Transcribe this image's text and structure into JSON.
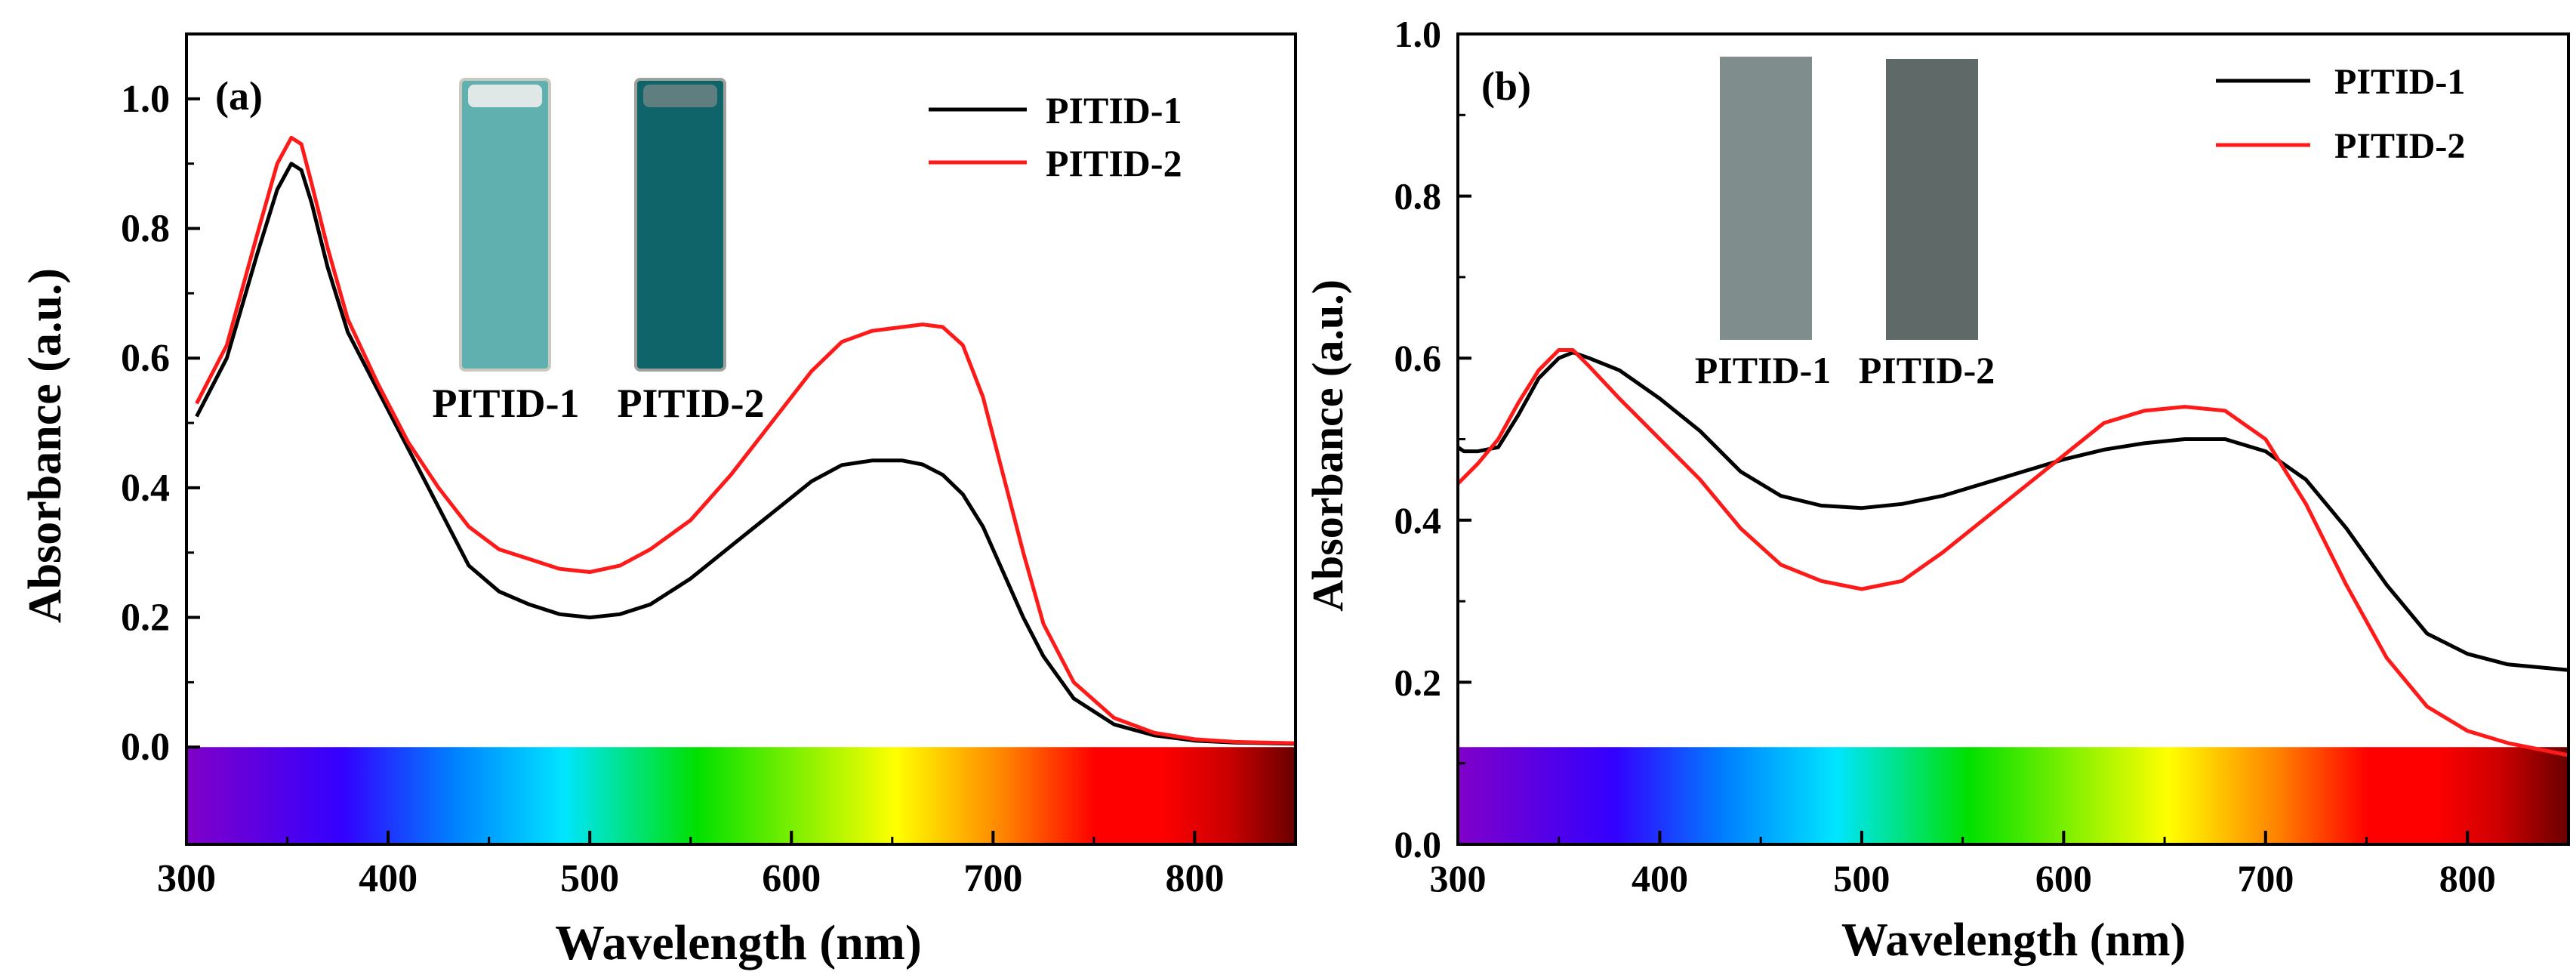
{
  "colors": {
    "series1": "#000000",
    "series2": "#ff1a1a",
    "axis": "#000000",
    "spectrum": [
      "#8000c8",
      "#3300ff",
      "#0080ff",
      "#00e5ff",
      "#00e000",
      "#ffff00",
      "#ff8000",
      "#ff0000",
      "#ff0000",
      "#cc0000",
      "#6b0000"
    ],
    "panel_a_cuvette_1": "#5fb0ae",
    "panel_a_cuvette_2": "#0f6469",
    "panel_b_film_1": "#7f8e8c",
    "panel_b_film_2": "#5f6a68"
  },
  "chart_data": [
    {
      "type": "line",
      "panel": "(a)",
      "title": "",
      "xlabel": "Wavelength (nm)",
      "ylabel": "Absorbance (a.u.)",
      "xlim": [
        300,
        850
      ],
      "ylim": [
        -0.15,
        1.1
      ],
      "xticks": [
        300,
        400,
        500,
        600,
        700,
        800
      ],
      "yticks": [
        0.0,
        0.2,
        0.4,
        0.6,
        0.8,
        1.0
      ],
      "xtick_labels": [
        "300",
        "400",
        "500",
        "600",
        "700",
        "800"
      ],
      "ytick_labels": [
        "0.0",
        "0.2",
        "0.4",
        "0.6",
        "0.8",
        "1.0"
      ],
      "legend": [
        "PITID-1",
        "PITID-2"
      ],
      "legend_position": "top-right",
      "inset_labels": [
        "PITID-1",
        "PITID-2"
      ],
      "spectrum_bar": true,
      "series": [
        {
          "name": "PITID-1",
          "x": [
            305,
            320,
            335,
            345,
            352,
            357,
            362,
            370,
            380,
            395,
            410,
            425,
            440,
            455,
            470,
            485,
            500,
            515,
            530,
            550,
            570,
            590,
            610,
            625,
            640,
            655,
            665,
            675,
            685,
            695,
            705,
            715,
            725,
            740,
            760,
            780,
            800,
            820,
            850
          ],
          "y": [
            0.51,
            0.6,
            0.76,
            0.86,
            0.9,
            0.89,
            0.84,
            0.74,
            0.64,
            0.55,
            0.46,
            0.37,
            0.28,
            0.24,
            0.22,
            0.205,
            0.2,
            0.205,
            0.22,
            0.26,
            0.31,
            0.36,
            0.41,
            0.435,
            0.442,
            0.442,
            0.436,
            0.42,
            0.39,
            0.34,
            0.27,
            0.2,
            0.14,
            0.075,
            0.035,
            0.018,
            0.01,
            0.007,
            0.005
          ]
        },
        {
          "name": "PITID-2",
          "x": [
            305,
            320,
            335,
            345,
            352,
            357,
            362,
            370,
            380,
            395,
            410,
            425,
            440,
            455,
            470,
            485,
            500,
            515,
            530,
            550,
            570,
            590,
            610,
            625,
            640,
            655,
            665,
            675,
            685,
            695,
            705,
            715,
            725,
            740,
            760,
            780,
            800,
            820,
            850
          ],
          "y": [
            0.53,
            0.62,
            0.79,
            0.9,
            0.94,
            0.93,
            0.87,
            0.77,
            0.66,
            0.56,
            0.47,
            0.4,
            0.34,
            0.305,
            0.29,
            0.275,
            0.27,
            0.28,
            0.305,
            0.35,
            0.42,
            0.5,
            0.58,
            0.625,
            0.642,
            0.648,
            0.652,
            0.648,
            0.62,
            0.54,
            0.42,
            0.3,
            0.19,
            0.1,
            0.045,
            0.022,
            0.012,
            0.008,
            0.006
          ]
        }
      ]
    },
    {
      "type": "line",
      "panel": "(b)",
      "title": "",
      "xlabel": "Wavelength (nm)",
      "ylabel": "Absorbance (a.u.)",
      "xlim": [
        300,
        850
      ],
      "ylim": [
        0.0,
        1.0
      ],
      "xticks": [
        300,
        400,
        500,
        600,
        700,
        800
      ],
      "yticks": [
        0.0,
        0.2,
        0.4,
        0.6,
        0.8,
        1.0
      ],
      "xtick_labels": [
        "300",
        "400",
        "500",
        "600",
        "700",
        "800"
      ],
      "ytick_labels": [
        "0.0",
        "0.2",
        "0.4",
        "0.6",
        "0.8",
        "1.0"
      ],
      "legend": [
        "PITID-1",
        "PITID-2"
      ],
      "legend_position": "top-right",
      "inset_labels": [
        "PITID-1",
        "PITID-2"
      ],
      "spectrum_bar": true,
      "series": [
        {
          "name": "PITID-1",
          "x": [
            300,
            303,
            310,
            320,
            330,
            340,
            350,
            357,
            365,
            380,
            400,
            420,
            440,
            460,
            480,
            500,
            520,
            540,
            560,
            580,
            600,
            620,
            640,
            660,
            680,
            700,
            720,
            740,
            760,
            780,
            800,
            820,
            850
          ],
          "y": [
            0.49,
            0.485,
            0.485,
            0.49,
            0.53,
            0.575,
            0.6,
            0.607,
            0.6,
            0.585,
            0.55,
            0.51,
            0.46,
            0.43,
            0.418,
            0.415,
            0.42,
            0.43,
            0.445,
            0.46,
            0.475,
            0.487,
            0.495,
            0.5,
            0.5,
            0.485,
            0.45,
            0.39,
            0.32,
            0.26,
            0.235,
            0.222,
            0.215
          ]
        },
        {
          "name": "PITID-2",
          "x": [
            300,
            310,
            320,
            330,
            340,
            350,
            357,
            365,
            380,
            400,
            420,
            440,
            460,
            480,
            500,
            520,
            540,
            560,
            580,
            600,
            620,
            640,
            660,
            680,
            700,
            720,
            740,
            760,
            780,
            800,
            820,
            850
          ],
          "y": [
            0.445,
            0.47,
            0.5,
            0.545,
            0.585,
            0.61,
            0.61,
            0.59,
            0.55,
            0.5,
            0.45,
            0.39,
            0.345,
            0.325,
            0.315,
            0.325,
            0.36,
            0.4,
            0.44,
            0.48,
            0.52,
            0.535,
            0.54,
            0.535,
            0.5,
            0.42,
            0.32,
            0.23,
            0.17,
            0.14,
            0.125,
            0.11
          ]
        }
      ]
    }
  ]
}
